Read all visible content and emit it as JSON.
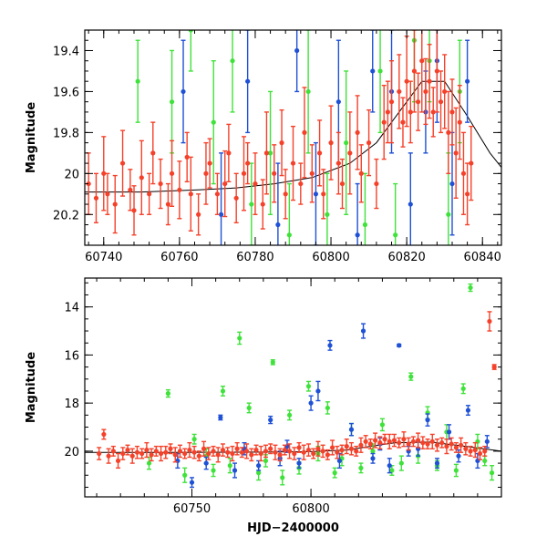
{
  "colors": {
    "red": "#f5412a",
    "green": "#3fe23a",
    "blue": "#1f51d6",
    "model": "#000000"
  },
  "chart_data": [
    {
      "type": "scatter",
      "title": "",
      "xlabel": "",
      "ylabel": "Magnitude",
      "xlim": [
        60735,
        60845
      ],
      "ylim": [
        20.35,
        19.3
      ],
      "y_inverted": true,
      "xticks": [
        60740,
        60760,
        60780,
        60800,
        60820,
        60840
      ],
      "yticks": [
        19.4,
        19.6,
        19.8,
        20,
        20.2
      ],
      "xticklabels": [
        "60740",
        "60760",
        "60780",
        "60800",
        "60820",
        "60840"
      ],
      "yticklabels": [
        "19.4",
        "19.6",
        "19.8",
        "20",
        "20.2"
      ],
      "model_curve": {
        "x": [
          60735,
          60750,
          60765,
          60775,
          60785,
          60795,
          60805,
          60812,
          60818,
          60824,
          60830,
          60836,
          60842,
          60845
        ],
        "y": [
          20.09,
          20.09,
          20.08,
          20.07,
          20.05,
          20.02,
          19.95,
          19.85,
          19.7,
          19.55,
          19.55,
          19.72,
          19.9,
          19.97
        ]
      },
      "series": [
        {
          "color": "red",
          "x": [
            60736,
            60738,
            60740,
            60741,
            60743,
            60745,
            60747,
            60748,
            60750,
            60752,
            60753,
            60755,
            60757,
            60758,
            60760,
            60762,
            60763,
            60765,
            60767,
            60768,
            60770,
            60772,
            60773,
            60775,
            60777,
            60778,
            60780,
            60782,
            60783,
            60785,
            60787,
            60788,
            60790,
            60792,
            60793,
            60795,
            60797,
            60798,
            60800,
            60802,
            60803,
            60805,
            60807,
            60808,
            60810,
            60812,
            60814,
            60815,
            60816,
            60818,
            60819,
            60820,
            60821,
            60822,
            60823,
            60824,
            60825,
            60826,
            60827,
            60828,
            60829,
            60830,
            60831,
            60832,
            60833,
            60834,
            60835,
            60836,
            60837
          ],
          "y": [
            20.05,
            20.12,
            20.0,
            20.1,
            20.15,
            19.95,
            20.08,
            20.18,
            20.02,
            20.1,
            19.9,
            20.05,
            20.15,
            20.0,
            20.08,
            19.92,
            20.1,
            20.2,
            20.0,
            19.95,
            20.1,
            20.05,
            19.9,
            20.12,
            20.0,
            19.95,
            20.05,
            20.15,
            19.9,
            20.0,
            19.85,
            20.1,
            19.95,
            20.05,
            19.8,
            20.0,
            19.9,
            20.1,
            19.85,
            19.95,
            20.05,
            19.9,
            19.8,
            20.0,
            19.85,
            20.05,
            19.75,
            19.7,
            19.65,
            19.6,
            19.75,
            19.55,
            19.7,
            19.5,
            19.65,
            19.45,
            19.6,
            19.55,
            19.7,
            19.5,
            19.65,
            19.6,
            19.8,
            19.7,
            19.9,
            19.75,
            20.0,
            20.1,
            19.95
          ],
          "err": [
            0.15,
            0.12,
            0.18,
            0.1,
            0.14,
            0.16,
            0.1,
            0.12,
            0.18,
            0.1,
            0.15,
            0.12,
            0.1,
            0.16,
            0.14,
            0.12,
            0.18,
            0.1,
            0.15,
            0.12,
            0.1,
            0.16,
            0.14,
            0.12,
            0.18,
            0.1,
            0.15,
            0.12,
            0.2,
            0.14,
            0.16,
            0.12,
            0.18,
            0.1,
            0.22,
            0.14,
            0.16,
            0.12,
            0.18,
            0.15,
            0.12,
            0.2,
            0.18,
            0.14,
            0.16,
            0.12,
            0.18,
            0.15,
            0.2,
            0.18,
            0.12,
            0.22,
            0.15,
            0.2,
            0.14,
            0.25,
            0.16,
            0.18,
            0.12,
            0.2,
            0.15,
            0.18,
            0.2,
            0.16,
            0.22,
            0.18,
            0.2,
            0.15,
            0.18
          ]
        },
        {
          "color": "green",
          "x": [
            60749,
            60758,
            60763,
            60769,
            60774,
            60779,
            60784,
            60789,
            60794,
            60799,
            60804,
            60809,
            60813,
            60817,
            60822,
            60826,
            60831,
            60834
          ],
          "y": [
            19.55,
            19.65,
            19.3,
            19.75,
            19.45,
            20.15,
            19.9,
            20.3,
            19.6,
            20.2,
            19.85,
            20.25,
            19.5,
            20.3,
            19.35,
            19.45,
            20.2,
            19.6
          ],
          "err": [
            0.2,
            0.25,
            0.2,
            0.3,
            0.25,
            0.2,
            0.3,
            0.25,
            0.3,
            0.2,
            0.35,
            0.25,
            0.3,
            0.25,
            0.3,
            0.2,
            0.3,
            0.25
          ]
        },
        {
          "color": "blue",
          "x": [
            60761,
            60771,
            60778,
            60786,
            60791,
            60796,
            60802,
            60807,
            60811,
            60816,
            60821,
            60825,
            60828,
            60832,
            60836
          ],
          "y": [
            19.6,
            20.2,
            19.55,
            20.25,
            19.4,
            20.1,
            19.65,
            20.3,
            19.5,
            19.6,
            20.15,
            19.7,
            19.45,
            20.05,
            19.55
          ],
          "err": [
            0.25,
            0.3,
            0.25,
            0.3,
            0.2,
            0.25,
            0.3,
            0.25,
            0.2,
            0.3,
            0.25,
            0.2,
            0.3,
            0.25,
            0.2
          ]
        }
      ]
    },
    {
      "type": "scatter",
      "title": "",
      "xlabel": "HJD−2400000",
      "ylabel": "Magnitude",
      "xlim": [
        60705,
        60880
      ],
      "ylim": [
        21.9,
        12.8
      ],
      "y_inverted": true,
      "xticks": [
        60750,
        60800
      ],
      "yticks": [
        14,
        16,
        18,
        20
      ],
      "xticklabels": [
        "60750",
        "60800"
      ],
      "yticklabels": [
        "14",
        "16",
        "18",
        "20"
      ],
      "model_curve": {
        "x": [
          60705,
          60740,
          60780,
          60800,
          60815,
          60825,
          60835,
          60850,
          60865,
          60880
        ],
        "y": [
          20.05,
          20.05,
          20.04,
          20.02,
          19.95,
          19.8,
          19.65,
          19.62,
          19.8,
          20.0
        ]
      },
      "series": [
        {
          "color": "red",
          "x": [
            60711,
            60713,
            60715,
            60717,
            60719,
            60721,
            60723,
            60725,
            60727,
            60729,
            60731,
            60733,
            60735,
            60737,
            60739,
            60741,
            60743,
            60745,
            60747,
            60749,
            60751,
            60753,
            60755,
            60757,
            60759,
            60761,
            60763,
            60765,
            60767,
            60769,
            60771,
            60773,
            60775,
            60777,
            60779,
            60781,
            60783,
            60785,
            60787,
            60789,
            60791,
            60793,
            60795,
            60797,
            60799,
            60801,
            60803,
            60805,
            60807,
            60809,
            60811,
            60813,
            60815,
            60817,
            60819,
            60821,
            60823,
            60825,
            60827,
            60829,
            60831,
            60833,
            60835,
            60837,
            60839,
            60841,
            60843,
            60845,
            60847,
            60849,
            60851,
            60853,
            60855,
            60857,
            60859,
            60861,
            60863,
            60865,
            60867,
            60869,
            60871,
            60873,
            60875,
            60877
          ],
          "y": [
            20.1,
            19.3,
            20.2,
            20.0,
            20.4,
            20.1,
            19.95,
            20.2,
            20.05,
            20.1,
            19.95,
            20.15,
            20.0,
            20.1,
            20.05,
            19.9,
            20.15,
            20.0,
            20.1,
            19.95,
            20.05,
            20.2,
            19.9,
            20.1,
            20.0,
            20.15,
            19.95,
            20.05,
            20.1,
            19.9,
            20.05,
            20.0,
            20.15,
            19.95,
            20.1,
            20.0,
            19.9,
            20.05,
            20.15,
            19.95,
            20.0,
            20.1,
            19.85,
            20.05,
            19.95,
            20.1,
            19.9,
            20.0,
            20.15,
            19.85,
            20.05,
            19.95,
            19.8,
            19.9,
            20.0,
            19.75,
            19.6,
            19.7,
            19.55,
            19.65,
            19.5,
            19.6,
            19.55,
            19.65,
            19.5,
            19.7,
            19.6,
            19.55,
            19.65,
            19.7,
            19.6,
            19.75,
            19.65,
            19.8,
            19.7,
            19.85,
            19.75,
            19.9,
            20.0,
            19.95,
            20.1,
            20.0,
            14.6,
            16.5
          ],
          "err": [
            0.25,
            0.2,
            0.3,
            0.2,
            0.3,
            0.25,
            0.2,
            0.3,
            0.25,
            0.2,
            0.3,
            0.25,
            0.2,
            0.3,
            0.25,
            0.2,
            0.3,
            0.25,
            0.2,
            0.3,
            0.25,
            0.2,
            0.3,
            0.25,
            0.2,
            0.3,
            0.25,
            0.2,
            0.3,
            0.25,
            0.2,
            0.3,
            0.25,
            0.2,
            0.3,
            0.25,
            0.2,
            0.3,
            0.25,
            0.2,
            0.3,
            0.25,
            0.2,
            0.3,
            0.25,
            0.2,
            0.3,
            0.25,
            0.2,
            0.3,
            0.25,
            0.2,
            0.3,
            0.25,
            0.2,
            0.3,
            0.25,
            0.2,
            0.3,
            0.25,
            0.2,
            0.3,
            0.25,
            0.2,
            0.3,
            0.25,
            0.2,
            0.3,
            0.25,
            0.2,
            0.3,
            0.25,
            0.2,
            0.3,
            0.25,
            0.2,
            0.3,
            0.25,
            0.2,
            0.3,
            0.25,
            0.2,
            0.4,
            0.1
          ]
        },
        {
          "color": "green",
          "x": [
            60732,
            60740,
            60747,
            60751,
            60756,
            60759,
            60763,
            60766,
            60770,
            60774,
            60778,
            60781,
            60784,
            60788,
            60791,
            60795,
            60799,
            60803,
            60807,
            60810,
            60813,
            60817,
            60821,
            60826,
            60830,
            60834,
            60838,
            60842,
            60845,
            60849,
            60853,
            60857,
            60861,
            60864,
            60867,
            60870,
            60873,
            60876
          ],
          "y": [
            20.5,
            17.6,
            21.0,
            19.5,
            20.2,
            20.8,
            17.5,
            20.6,
            15.3,
            18.2,
            20.9,
            20.4,
            16.3,
            21.1,
            18.5,
            20.7,
            17.3,
            20.1,
            18.2,
            20.9,
            20.3,
            19.1,
            20.7,
            20.0,
            18.9,
            20.8,
            20.5,
            16.9,
            20.2,
            18.4,
            20.6,
            19.2,
            20.8,
            17.4,
            13.2,
            19.6,
            20.4,
            20.9
          ],
          "err": [
            0.25,
            0.15,
            0.3,
            0.2,
            0.3,
            0.25,
            0.2,
            0.3,
            0.25,
            0.2,
            0.3,
            0.25,
            0.1,
            0.3,
            0.2,
            0.25,
            0.2,
            0.3,
            0.25,
            0.2,
            0.3,
            0.25,
            0.2,
            0.3,
            0.25,
            0.2,
            0.3,
            0.15,
            0.3,
            0.25,
            0.2,
            0.3,
            0.25,
            0.2,
            0.15,
            0.3,
            0.2,
            0.3
          ]
        },
        {
          "color": "blue",
          "x": [
            60744,
            60750,
            60756,
            60762,
            60768,
            60772,
            60778,
            60783,
            60787,
            60790,
            60795,
            60800,
            60803,
            60808,
            60812,
            60817,
            60822,
            60826,
            60829,
            60833,
            60837,
            60841,
            60845,
            60849,
            60853,
            60858,
            60862,
            60866,
            60870,
            60874
          ],
          "y": [
            20.4,
            21.3,
            20.5,
            18.6,
            20.8,
            19.9,
            20.6,
            18.7,
            20.3,
            19.8,
            20.5,
            18.0,
            17.5,
            15.6,
            20.4,
            19.1,
            15.0,
            20.3,
            19.7,
            20.6,
            15.6,
            20.0,
            19.9,
            18.7,
            20.5,
            19.2,
            20.2,
            18.3,
            20.4,
            19.6
          ],
          "err": [
            0.3,
            0.2,
            0.25,
            0.1,
            0.3,
            0.25,
            0.2,
            0.15,
            0.3,
            0.25,
            0.2,
            0.3,
            0.4,
            0.2,
            0.3,
            0.25,
            0.3,
            0.2,
            0.25,
            0.3,
            0.05,
            0.2,
            0.3,
            0.25,
            0.2,
            0.3,
            0.25,
            0.2,
            0.3,
            0.25
          ]
        }
      ]
    }
  ]
}
